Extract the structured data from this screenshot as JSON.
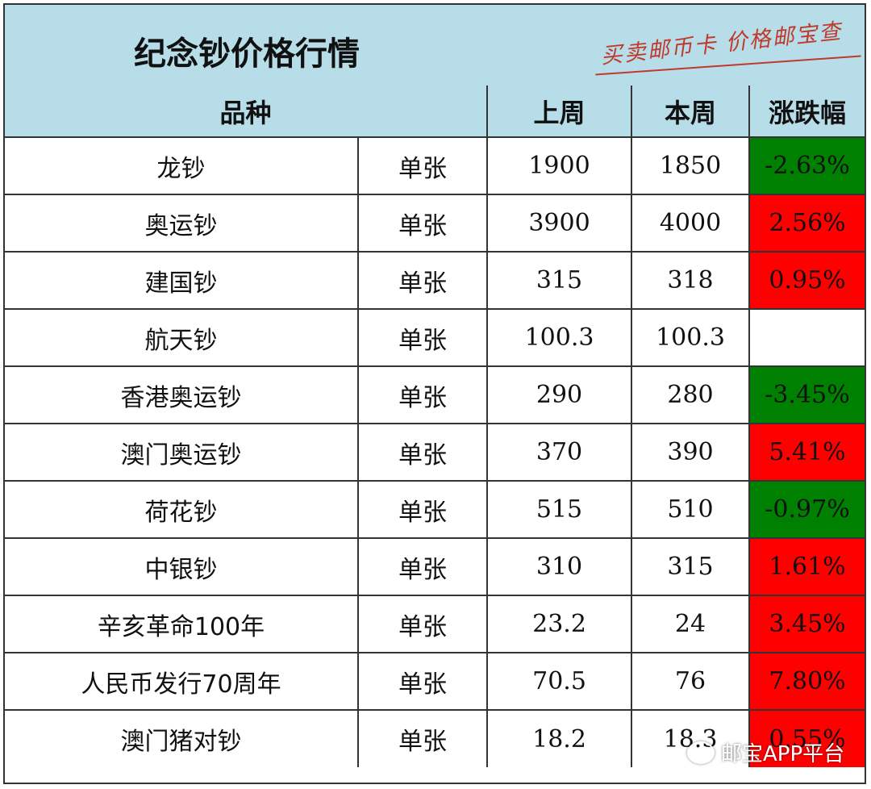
{
  "title": "纪念钞价格行情",
  "slogan": "买卖邮币卡 价格邮宝查",
  "headers": {
    "variety": "品种",
    "last_week": "上周",
    "this_week": "本周",
    "change": "涨跌幅"
  },
  "rows": [
    {
      "name": "龙钞",
      "unit": "单张",
      "last": "1900",
      "this": "1850",
      "change": "-2.63%",
      "dir": "down"
    },
    {
      "name": "奥运钞",
      "unit": "单张",
      "last": "3900",
      "this": "4000",
      "change": "2.56%",
      "dir": "up"
    },
    {
      "name": "建国钞",
      "unit": "单张",
      "last": "315",
      "this": "318",
      "change": "0.95%",
      "dir": "up"
    },
    {
      "name": "航天钞",
      "unit": "单张",
      "last": "100.3",
      "this": "100.3",
      "change": "",
      "dir": "flat"
    },
    {
      "name": "香港奥运钞",
      "unit": "单张",
      "last": "290",
      "this": "280",
      "change": "-3.45%",
      "dir": "down"
    },
    {
      "name": "澳门奥运钞",
      "unit": "单张",
      "last": "370",
      "this": "390",
      "change": "5.41%",
      "dir": "up"
    },
    {
      "name": "荷花钞",
      "unit": "单张",
      "last": "515",
      "this": "510",
      "change": "-0.97%",
      "dir": "down"
    },
    {
      "name": "中银钞",
      "unit": "单张",
      "last": "310",
      "this": "315",
      "change": "1.61%",
      "dir": "up"
    },
    {
      "name": "辛亥革命100年",
      "unit": "单张",
      "last": "23.2",
      "this": "24",
      "change": "3.45%",
      "dir": "up"
    },
    {
      "name": "人民币发行70周年",
      "unit": "单张",
      "last": "70.5",
      "this": "76",
      "change": "7.80%",
      "dir": "up"
    },
    {
      "name": "澳门猪对钞",
      "unit": "单张",
      "last": "18.2",
      "this": "18.3",
      "change": "0.55%",
      "dir": "up"
    }
  ],
  "colors": {
    "up": "#ff0000",
    "down": "#008000",
    "header": "#b6dde8"
  },
  "watermark": "邮宝APP平台"
}
